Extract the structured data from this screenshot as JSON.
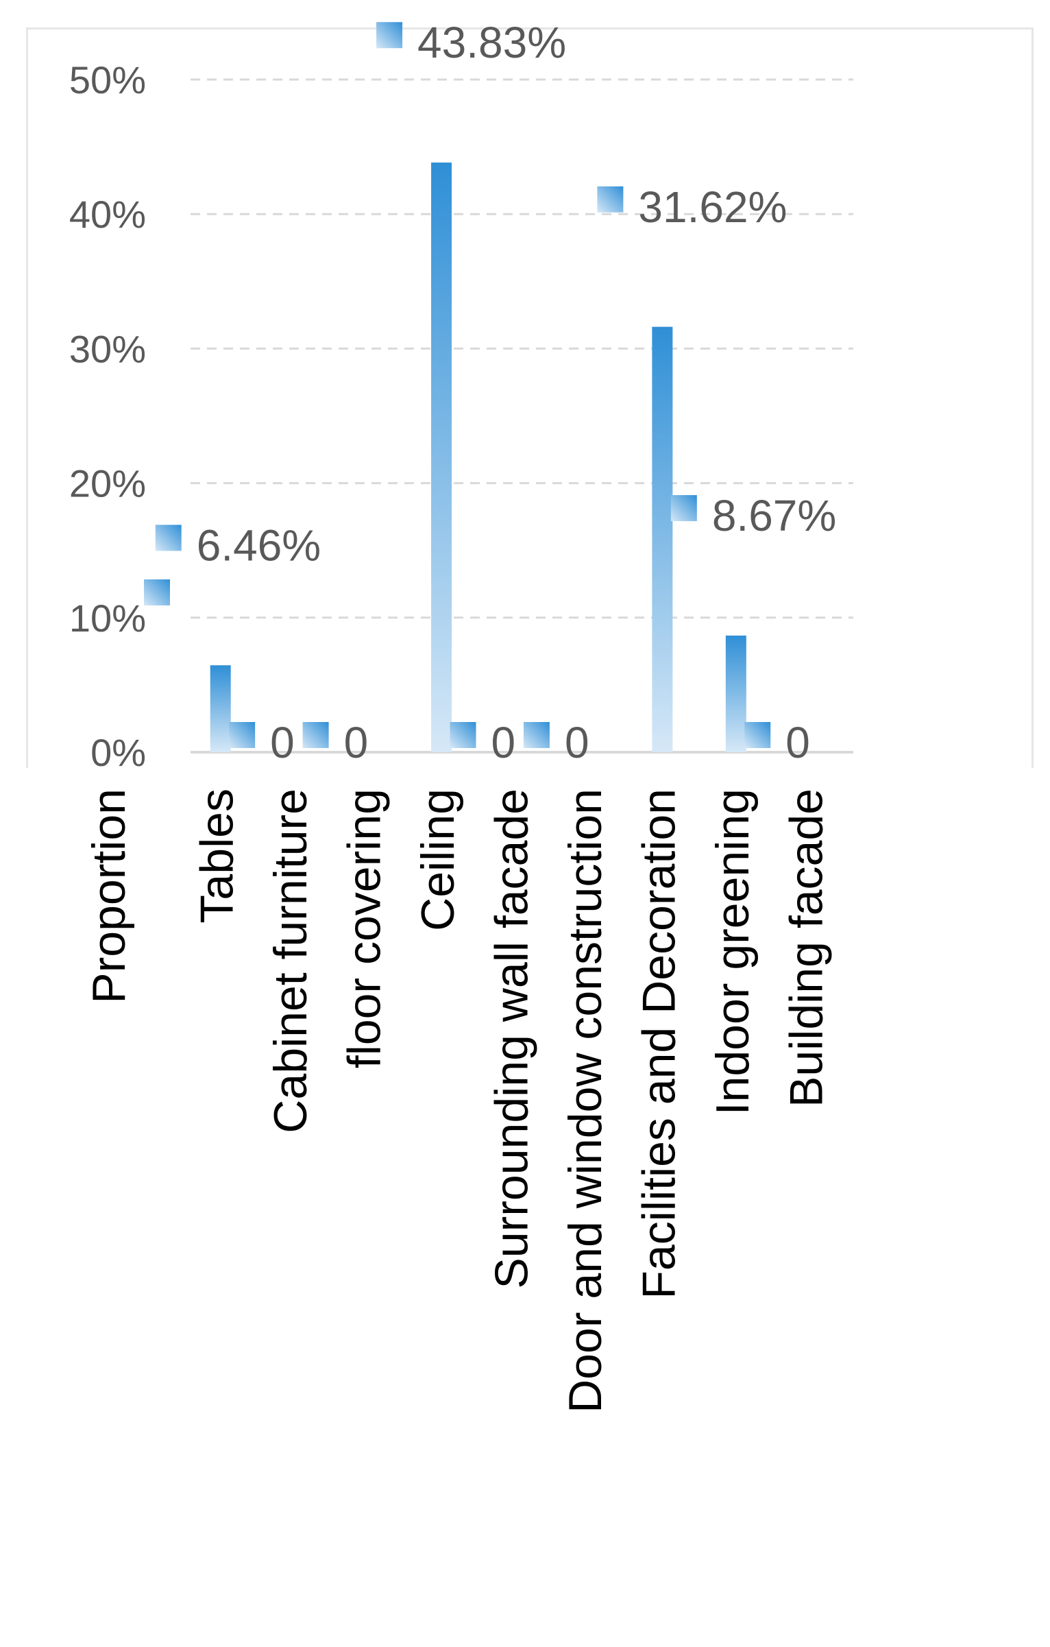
{
  "chart_data": {
    "type": "bar",
    "legend_label": "Proportion",
    "categories": [
      "Tables",
      "Cabinet furniture",
      "floor covering",
      "Ceiling",
      "Surrounding wall facade",
      "Door and window construction",
      "Facilities and Decoration",
      "Indoor greening",
      "Building facade"
    ],
    "values": [
      6.46,
      0,
      0,
      43.83,
      0,
      0,
      31.62,
      8.67,
      0
    ],
    "data_labels": [
      "6.46%",
      "0",
      "0",
      "43.83%",
      "0",
      "0",
      "31.62%",
      "8.67%",
      "0"
    ],
    "ylim": [
      0,
      50
    ],
    "yticks": [
      "0%",
      "10%",
      "20%",
      "30%",
      "40%",
      "50%"
    ],
    "grid": true,
    "legend_position": "bottom-left",
    "colors": {
      "bar": "#2f8fd6",
      "bar_light": "#d6e8f7",
      "text": "#595959",
      "axis_label": "#000000",
      "grid": "#d9d9d9"
    }
  }
}
